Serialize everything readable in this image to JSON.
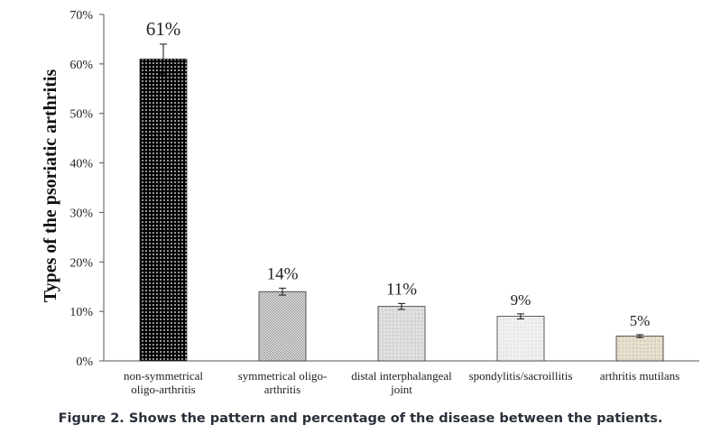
{
  "caption": "Figure 2. Shows the pattern and percentage of the disease between the patients.",
  "chart_data": {
    "type": "bar",
    "ylabel": "Types of the psoriatic arthritis",
    "xlabel": "",
    "ylim": [
      0,
      70
    ],
    "yticks": [
      0,
      10,
      20,
      30,
      40,
      50,
      60,
      70
    ],
    "ytick_format": "percent",
    "grid": false,
    "legend": "none",
    "categories": [
      [
        "non-symmetrical",
        "oligo-arthritis"
      ],
      [
        "symmetrical oligo-",
        "arthritis"
      ],
      [
        "distal interphalangeal",
        "joint"
      ],
      [
        "spondylitis/sacroillitis"
      ],
      [
        "arthritis mutilans"
      ]
    ],
    "values": [
      61,
      14,
      11,
      9,
      5
    ],
    "error": [
      3,
      0.7,
      0.6,
      0.5,
      0.3
    ],
    "data_labels": [
      "61%",
      "14%",
      "11%",
      "9%",
      "5%"
    ],
    "patterns": [
      "black-dots-dense",
      "crosshatch-gray",
      "light-gray-dots",
      "very-light-dots",
      "beige-dots"
    ]
  }
}
